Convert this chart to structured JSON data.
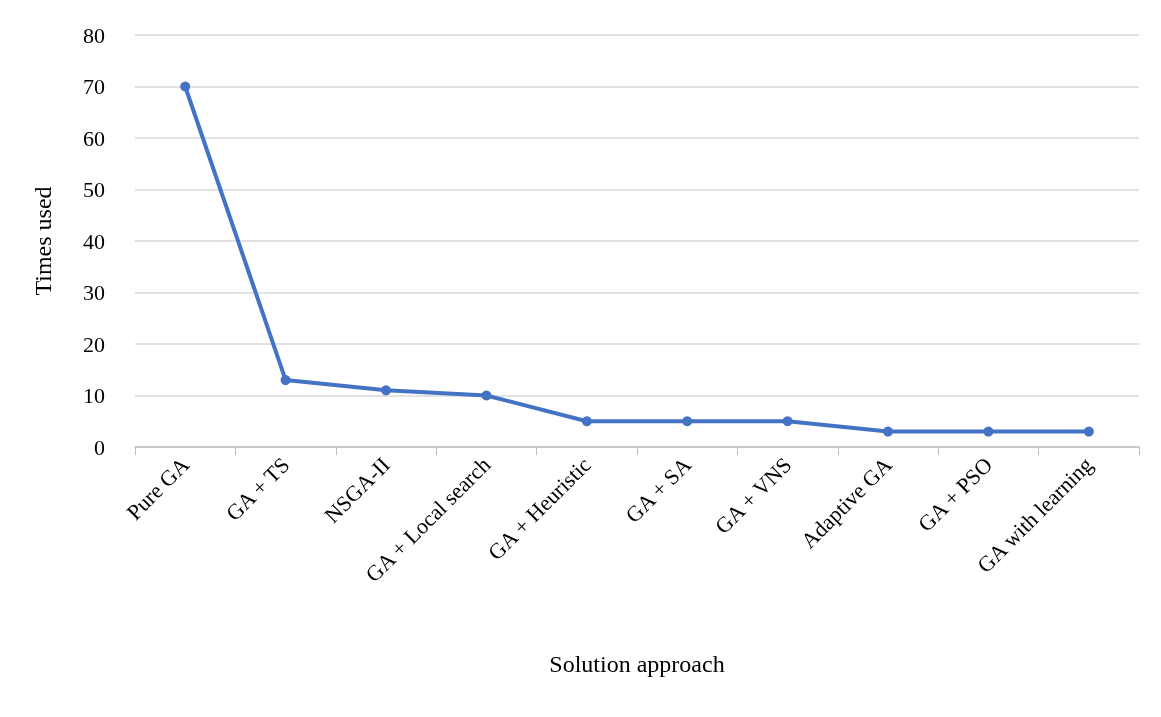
{
  "chart_data": {
    "type": "line",
    "xlabel": "Solution approach",
    "ylabel": "Times used",
    "categories": [
      "Pure GA",
      "GA + TS",
      "NSGA-II",
      "GA + Local search",
      "GA + Heuristic",
      "GA + SA",
      "GA + VNS",
      "Adaptive GA",
      "GA + PSO",
      "GA with learning"
    ],
    "series": [
      {
        "color": "#4472c4",
        "values": [
          70,
          13,
          11,
          10,
          5,
          5,
          5,
          3,
          3,
          3
        ]
      }
    ],
    "ylim": [
      0,
      80
    ],
    "yticks": [
      0,
      10,
      20,
      30,
      40,
      50,
      60,
      70,
      80
    ],
    "grid": "y",
    "marker": "circle",
    "line_style": "solid"
  }
}
